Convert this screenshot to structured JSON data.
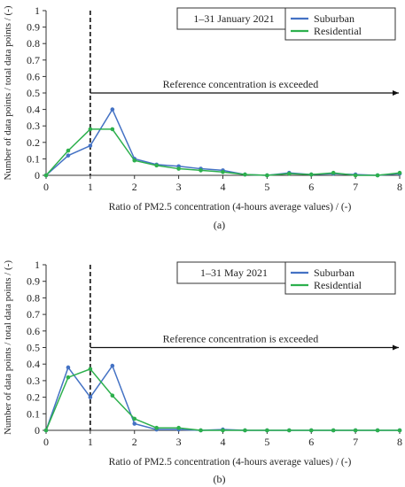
{
  "chart_data": [
    {
      "type": "line",
      "panel_label": "(a)",
      "period_label": "1–31 January 2021",
      "ylabel": "Number of data points / total data points / (-)",
      "xlabel": "Ratio of PM2.5 concentration (4-hours average values) / (-)",
      "annotation": "Reference concentration is exceeded",
      "reference_x": 1,
      "xlim": [
        0,
        8
      ],
      "ylim": [
        0,
        1
      ],
      "x_ticks": [
        0,
        1,
        2,
        3,
        4,
        5,
        6,
        7,
        8
      ],
      "y_ticks": [
        0,
        0.1,
        0.2,
        0.3,
        0.4,
        0.5,
        0.6,
        0.7,
        0.8,
        0.9,
        1
      ],
      "y_tick_labels": [
        "0",
        "0.1",
        "0.2",
        "0.3",
        "0.4",
        "0.5",
        "0.6",
        "0.7",
        "0.8",
        "0.9",
        "1"
      ],
      "grid": false,
      "legend_position": "top-right",
      "x": [
        0,
        0.5,
        1,
        1.5,
        2,
        2.5,
        3,
        3.5,
        4,
        4.5,
        5,
        5.5,
        6,
        6.5,
        7,
        7.5,
        8
      ],
      "series": [
        {
          "name": "Suburban",
          "color": "#4472C4",
          "values": [
            0,
            0.12,
            0.18,
            0.4,
            0.1,
            0.065,
            0.055,
            0.04,
            0.03,
            0.005,
            0.0,
            0.015,
            0.005,
            0.01,
            0.005,
            0.0,
            0.01
          ]
        },
        {
          "name": "Residential",
          "color": "#2DB04D",
          "values": [
            0,
            0.15,
            0.28,
            0.28,
            0.09,
            0.06,
            0.04,
            0.03,
            0.02,
            0.005,
            0.0,
            0.01,
            0.005,
            0.015,
            0.0,
            0.0,
            0.015
          ]
        }
      ]
    },
    {
      "type": "line",
      "panel_label": "(b)",
      "period_label": "1–31 May 2021",
      "ylabel": "Number of data points / total data points / (-)",
      "xlabel": "Ratio of PM2.5 concentration (4-hours average values) / (-)",
      "annotation": "Reference concentration is exceeded",
      "reference_x": 1,
      "xlim": [
        0,
        8
      ],
      "ylim": [
        0,
        1
      ],
      "x_ticks": [
        0,
        1,
        2,
        3,
        4,
        5,
        6,
        7,
        8
      ],
      "y_ticks": [
        0,
        0.1,
        0.2,
        0.3,
        0.4,
        0.5,
        0.6,
        0.7,
        0.8,
        0.9,
        1
      ],
      "y_tick_labels": [
        "0",
        "0.1",
        "0.2",
        "0.3",
        "0.4",
        "0.5",
        "0.6",
        "0.7",
        "0.8",
        "0.9",
        "1"
      ],
      "grid": false,
      "legend_position": "top-right",
      "x": [
        0,
        0.5,
        1,
        1.5,
        2,
        2.5,
        3,
        3.5,
        4,
        4.5,
        5,
        5.5,
        6,
        6.5,
        7,
        7.5,
        8
      ],
      "series": [
        {
          "name": "Suburban",
          "color": "#4472C4",
          "values": [
            0,
            0.38,
            0.2,
            0.39,
            0.04,
            0.005,
            0.005,
            0.0,
            0.005,
            0.0,
            0.0,
            0.0,
            0.0,
            0.0,
            0.0,
            0.0,
            0.0
          ]
        },
        {
          "name": "Residential",
          "color": "#2DB04D",
          "values": [
            0,
            0.32,
            0.37,
            0.21,
            0.07,
            0.015,
            0.015,
            0.0,
            0.0,
            0.0,
            0.0,
            0.0,
            0.0,
            0.0,
            0.0,
            0.0,
            0.0
          ]
        }
      ]
    }
  ]
}
